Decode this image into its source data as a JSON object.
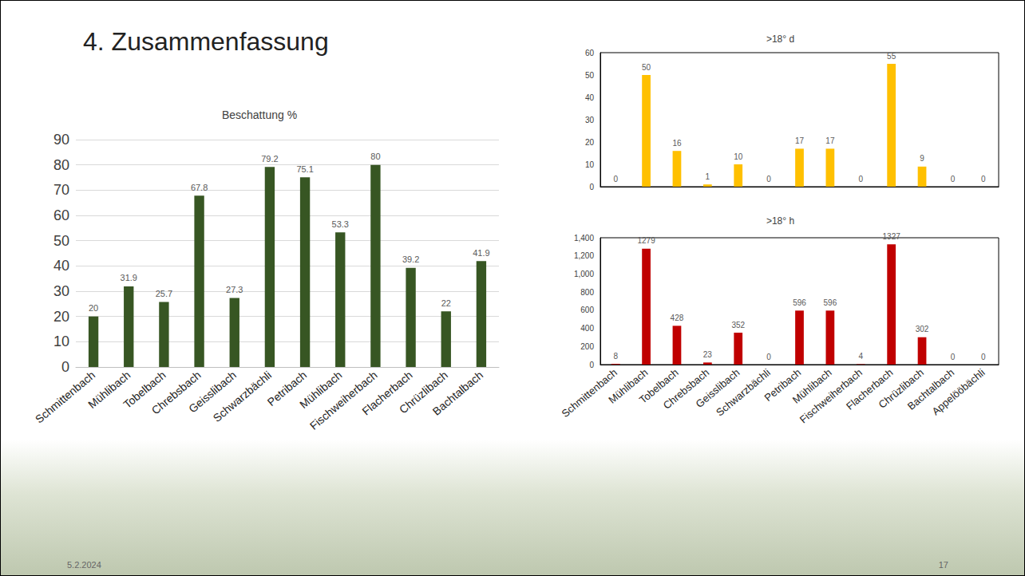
{
  "slide": {
    "title": "4. Zusammenfassung",
    "date": "5.2.2024",
    "page_number": "17"
  },
  "chart_data": [
    {
      "type": "bar",
      "title": "Beschattung %",
      "categories": [
        "Schmittenbach",
        "Mühlibach",
        "Tobelbach",
        "Chrebsbach",
        "Geisslibach",
        "Schwarzbächli",
        "Petribach",
        "Mühlibach",
        "Fischweiherbach",
        "Flacherbach",
        "Chrüzlibach",
        "Bachtalbach"
      ],
      "values": [
        20,
        31.9,
        25.7,
        67.8,
        27.3,
        79.2,
        75.1,
        53.3,
        80,
        39.2,
        22,
        41.9
      ],
      "color": "#375623",
      "ylim": [
        0,
        90
      ],
      "yticks": [
        0,
        10,
        20,
        30,
        40,
        50,
        60,
        70,
        80,
        90
      ],
      "grid": true,
      "data_labels": true
    },
    {
      "type": "bar",
      "title": ">18° d",
      "categories": [
        null,
        null,
        null,
        null,
        null,
        null,
        null,
        null,
        null,
        null,
        null,
        null,
        null
      ],
      "values": [
        0,
        50,
        16,
        1,
        10,
        0,
        17,
        17,
        0,
        55,
        9,
        0,
        0
      ],
      "color": "#ffc000",
      "ylim": [
        0,
        60
      ],
      "yticks": [
        0,
        10,
        20,
        30,
        40,
        50,
        60
      ],
      "grid": false,
      "data_labels": true
    },
    {
      "type": "bar",
      "title": ">18° h",
      "categories": [
        "Schmittenbach",
        "Mühlibach",
        "Tobelbach",
        "Chrebsbach",
        "Geisslibach",
        "Schwarzbächli",
        "Petribach",
        "Mühlibach",
        "Fischweiherbach",
        "Flacherbach",
        "Chrüzlibach",
        "Bachtalbach",
        "Appelööbächli"
      ],
      "values": [
        8,
        1279,
        428,
        23,
        352,
        0,
        596,
        596,
        4,
        1327,
        302,
        0,
        0
      ],
      "color": "#c00000",
      "ylim": [
        0,
        1400
      ],
      "yticks": [
        0,
        200,
        400,
        600,
        800,
        1000,
        1200,
        1400
      ],
      "grid": false,
      "data_labels": true
    }
  ]
}
